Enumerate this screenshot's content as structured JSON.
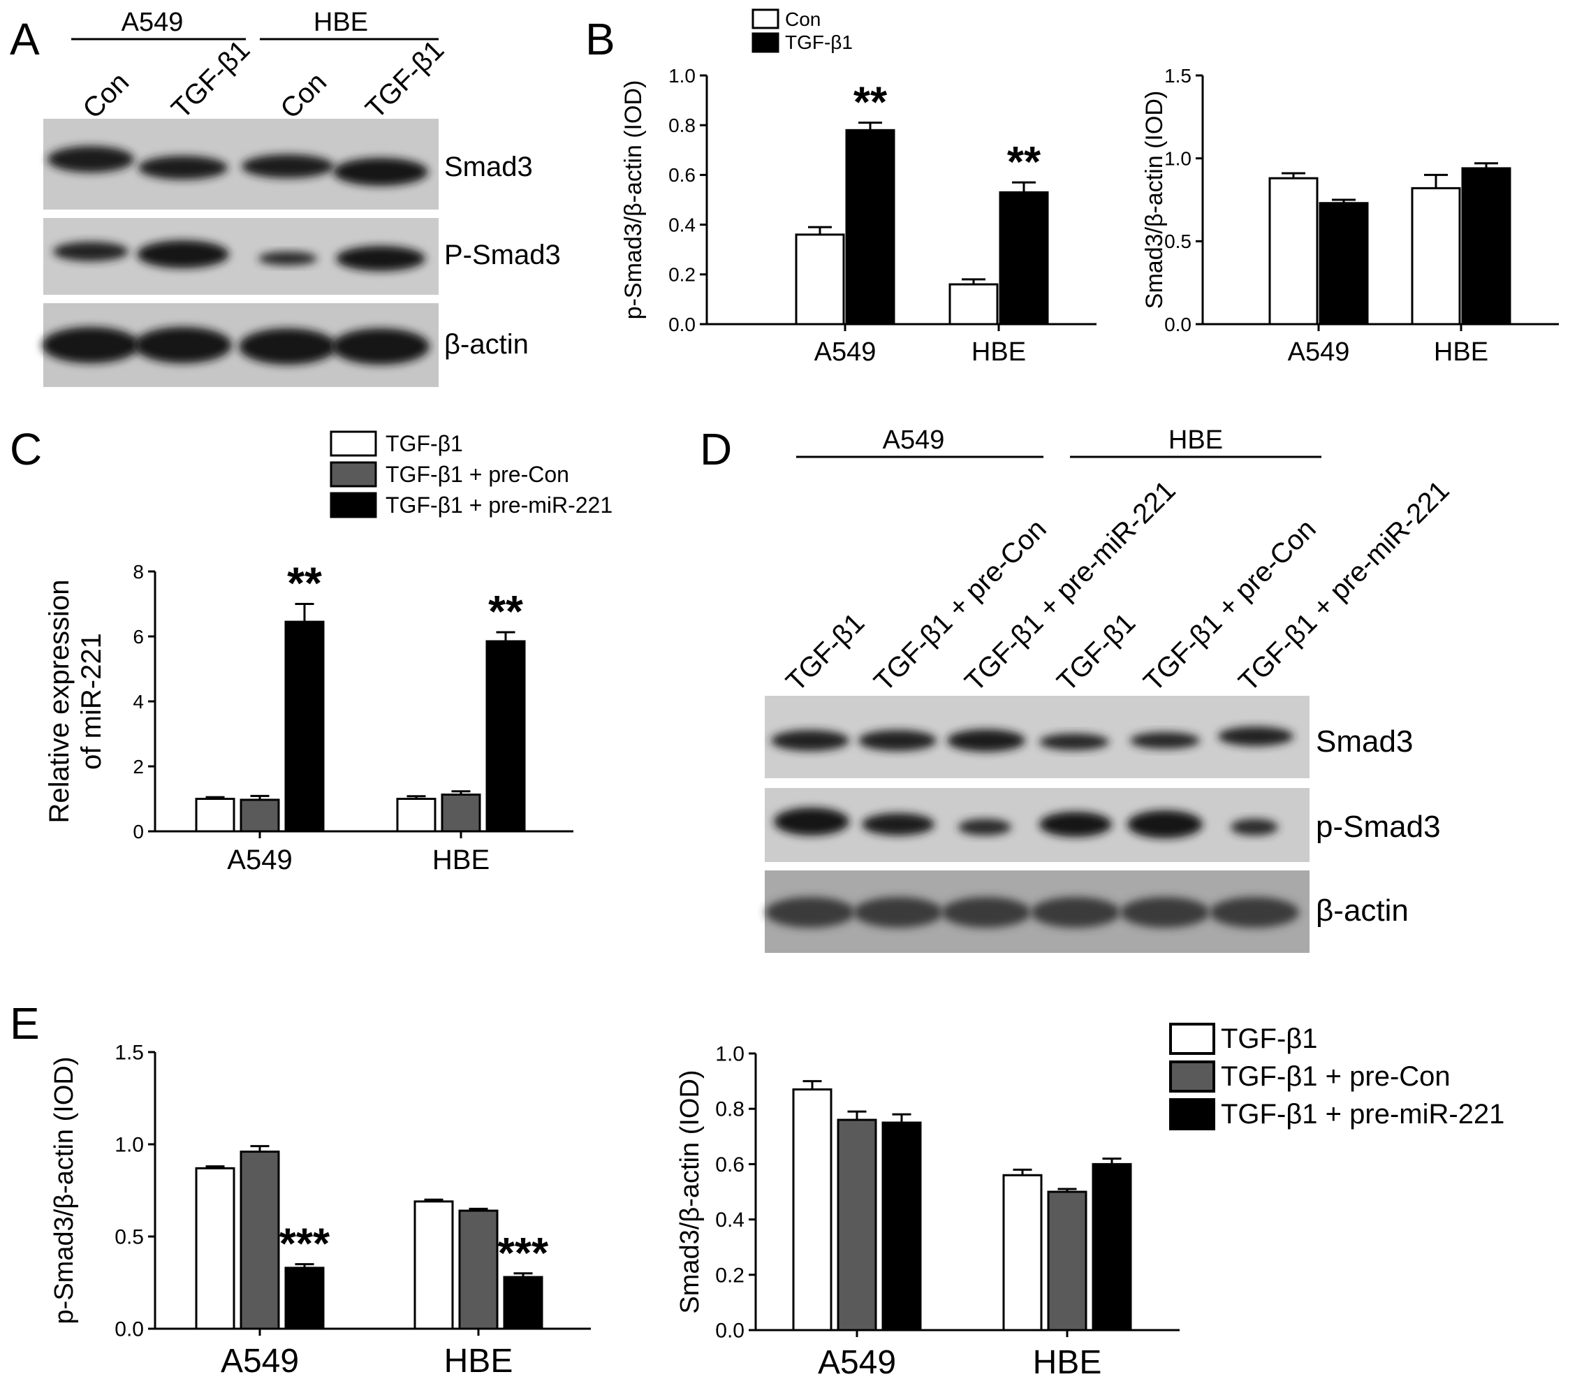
{
  "panel_letters": [
    "A",
    "B",
    "C",
    "D",
    "E"
  ],
  "colors": {
    "con": "#ffffff",
    "tgf": "#000000",
    "precon": "#5a5a5a",
    "premir": "#000000"
  },
  "panel_a": {
    "groups": [
      "A549",
      "HBE"
    ],
    "lanes": [
      "Con",
      "TGF-β1",
      "Con",
      "TGF-β1"
    ],
    "bands": [
      "Smad3",
      "P-Smad3",
      "β-actin"
    ]
  },
  "panel_d": {
    "groups": [
      "A549",
      "HBE"
    ],
    "lanes": [
      "TGF-β1",
      "TGF-β1 + pre-Con",
      "TGF-β1 + pre-miR-221",
      "TGF-β1",
      "TGF-β1 + pre-Con",
      "TGF-β1 + pre-miR-221"
    ],
    "bands": [
      "Smad3",
      "p-Smad3",
      "β-actin"
    ]
  },
  "legend_b": [
    "Con",
    "TGF-β1"
  ],
  "legend_c": [
    "TGF-β1",
    "TGF-β1 + pre-Con",
    "TGF-β1 + pre-miR-221"
  ],
  "legend_e": [
    "TGF-β1",
    "TGF-β1 + pre-Con",
    "TGF-β1 + pre-miR-221"
  ],
  "chart_data": [
    {
      "id": "B1",
      "type": "bar",
      "ylabel": "p-Smad3/β-actin (IOD)",
      "ylim": [
        0,
        1.0
      ],
      "yticks": [
        "0.0",
        "0.2",
        "0.4",
        "0.6",
        "0.8",
        "1.0"
      ],
      "categories": [
        "A549",
        "HBE"
      ],
      "series": [
        {
          "name": "Con",
          "values": [
            0.36,
            0.16
          ],
          "errors": [
            0.03,
            0.02
          ]
        },
        {
          "name": "TGF-β1",
          "values": [
            0.78,
            0.53
          ],
          "errors": [
            0.03,
            0.04
          ]
        }
      ],
      "annotations": [
        [
          "",
          "**"
        ],
        [
          "",
          "**"
        ]
      ]
    },
    {
      "id": "B2",
      "type": "bar",
      "ylabel": "Smad3/β-actin (IOD)",
      "ylim": [
        0,
        1.5
      ],
      "yticks": [
        "0.0",
        "0.5",
        "1.0",
        "1.5"
      ],
      "categories": [
        "A549",
        "HBE"
      ],
      "series": [
        {
          "name": "Con",
          "values": [
            0.88,
            0.82
          ],
          "errors": [
            0.03,
            0.08
          ]
        },
        {
          "name": "TGF-β1",
          "values": [
            0.73,
            0.94
          ],
          "errors": [
            0.02,
            0.03
          ]
        }
      ],
      "annotations": [
        [
          "",
          ""
        ],
        [
          "",
          ""
        ]
      ]
    },
    {
      "id": "C",
      "type": "bar",
      "ylabel": "Relative expression of miR-221",
      "ylabel_lines": [
        "Relative expression",
        "of miR-221"
      ],
      "ylim": [
        0,
        8
      ],
      "yticks": [
        "0",
        "2",
        "4",
        "6",
        "8"
      ],
      "categories": [
        "A549",
        "HBE"
      ],
      "series": [
        {
          "name": "TGF-β1",
          "values": [
            1.0,
            1.0
          ],
          "errors": [
            0.05,
            0.08
          ]
        },
        {
          "name": "TGF-β1 + pre-Con",
          "values": [
            0.97,
            1.13
          ],
          "errors": [
            0.12,
            0.1
          ]
        },
        {
          "name": "TGF-β1 + pre-miR-221",
          "values": [
            6.45,
            5.85
          ],
          "errors": [
            0.55,
            0.28
          ]
        }
      ],
      "annotations": [
        [
          "",
          "",
          "**"
        ],
        [
          "",
          "",
          "**"
        ]
      ]
    },
    {
      "id": "E1",
      "type": "bar",
      "ylabel": "p-Smad3/β-actin (IOD)",
      "ylim": [
        0,
        1.5
      ],
      "yticks": [
        "0.0",
        "0.5",
        "1.0",
        "1.5"
      ],
      "categories": [
        "A549",
        "HBE"
      ],
      "series": [
        {
          "name": "TGF-β1",
          "values": [
            0.87,
            0.69
          ],
          "errors": [
            0.01,
            0.01
          ]
        },
        {
          "name": "TGF-β1 + pre-Con",
          "values": [
            0.96,
            0.64
          ],
          "errors": [
            0.03,
            0.01
          ]
        },
        {
          "name": "TGF-β1 + pre-miR-221",
          "values": [
            0.33,
            0.28
          ],
          "errors": [
            0.02,
            0.02
          ]
        }
      ],
      "annotations": [
        [
          "",
          "",
          "***"
        ],
        [
          "",
          "",
          "***"
        ]
      ]
    },
    {
      "id": "E2",
      "type": "bar",
      "ylabel": "Smad3/β-actin (IOD)",
      "ylim": [
        0,
        1.0
      ],
      "yticks": [
        "0.0",
        "0.2",
        "0.4",
        "0.6",
        "0.8",
        "1.0"
      ],
      "categories": [
        "A549",
        "HBE"
      ],
      "series": [
        {
          "name": "TGF-β1",
          "values": [
            0.87,
            0.56
          ],
          "errors": [
            0.03,
            0.02
          ]
        },
        {
          "name": "TGF-β1 + pre-Con",
          "values": [
            0.76,
            0.5
          ],
          "errors": [
            0.03,
            0.01
          ]
        },
        {
          "name": "TGF-β1 + pre-miR-221",
          "values": [
            0.75,
            0.6
          ],
          "errors": [
            0.03,
            0.02
          ]
        }
      ],
      "annotations": [
        [
          "",
          "",
          ""
        ],
        [
          "",
          "",
          ""
        ]
      ]
    }
  ]
}
